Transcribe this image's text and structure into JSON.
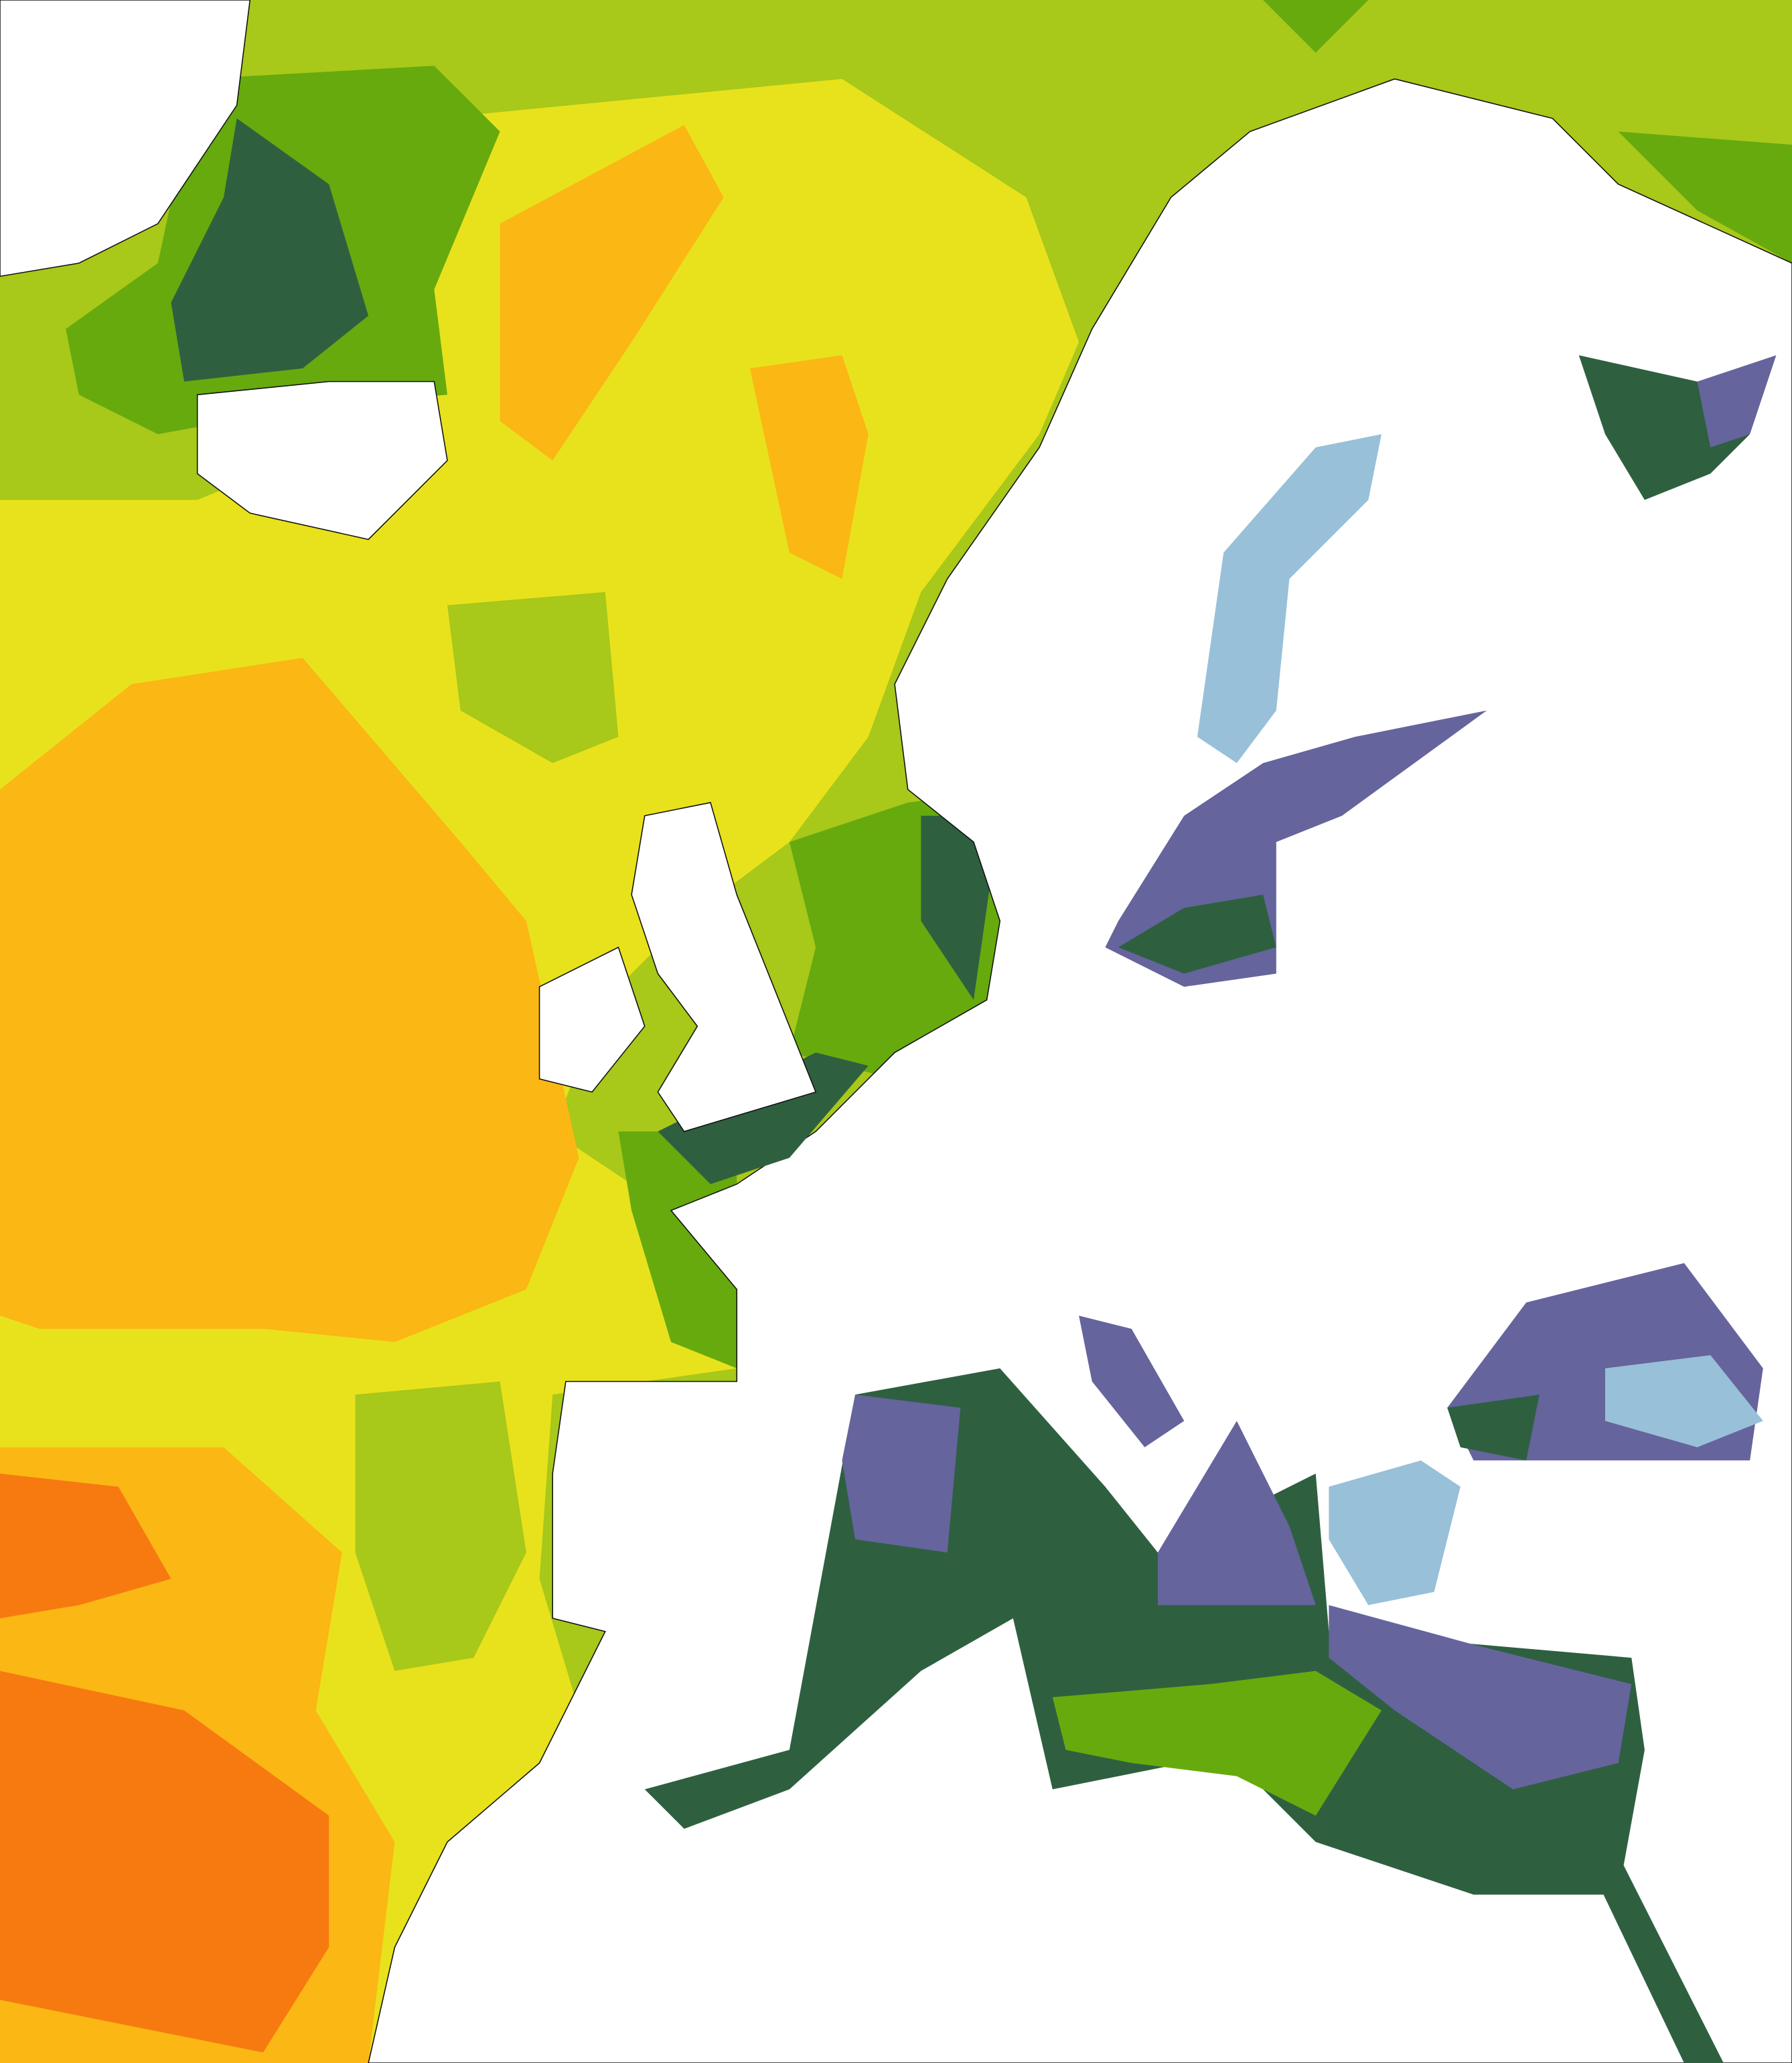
{
  "map": {
    "colors": [
      "#a8c81a",
      "#e8e21c",
      "#fbb714",
      "#f77a10",
      "#66aa0e",
      "#2e6040",
      "#65649c",
      "#98c0d8",
      "#ffffff"
    ]
  }
}
